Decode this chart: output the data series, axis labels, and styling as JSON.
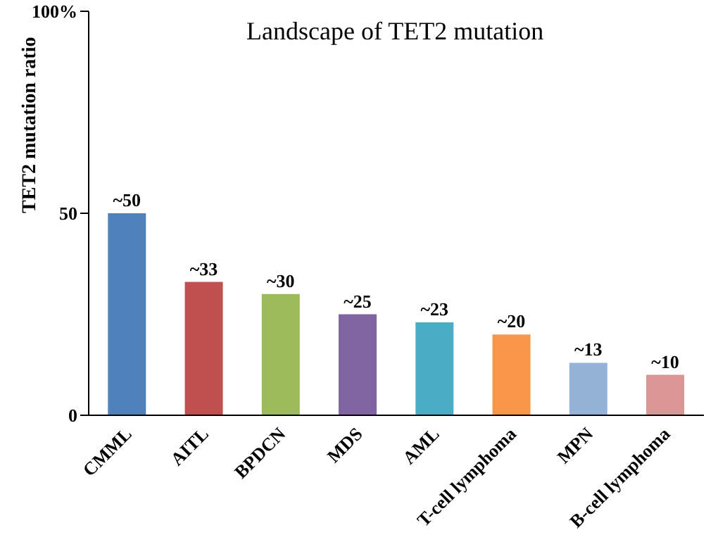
{
  "chart_data": {
    "type": "bar",
    "title": "Landscape of TET2 mutation",
    "ylabel": "TET2 mutation ratio",
    "categories": [
      "CMML",
      "AITL",
      "BPDCN",
      "MDS",
      "AML",
      "T-cell lymphoma",
      "MPN",
      "B-cell lymphoma"
    ],
    "values": [
      50,
      33,
      30,
      25,
      23,
      20,
      13,
      10
    ],
    "colors": [
      "#4f81bd",
      "#c0504d",
      "#9bbb59",
      "#8064a2",
      "#4bacc6",
      "#f79646",
      "#95b3d7",
      "#d99694"
    ],
    "value_labels": [
      "~50",
      "~33",
      "~30",
      "~25",
      "~23",
      "~20",
      "~13",
      "~10"
    ],
    "ylim": [
      0,
      100
    ],
    "yticks": [
      0,
      50,
      {
        "value": 100,
        "label": "100%"
      }
    ],
    "grid": false,
    "legend": false
  }
}
